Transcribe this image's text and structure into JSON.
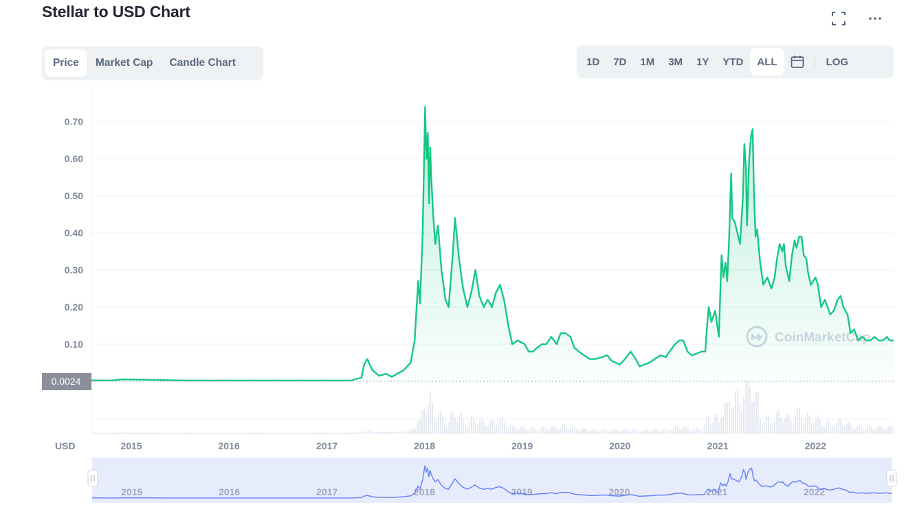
{
  "page": {
    "title": "Stellar to USD Chart",
    "fullscreen_icon": "fullscreen-icon",
    "more_icon": "more-horizontal-icon"
  },
  "tabs": [
    {
      "label": "Price",
      "active": true
    },
    {
      "label": "Market Cap",
      "active": false
    },
    {
      "label": "Candle Chart",
      "active": false
    }
  ],
  "ranges": [
    {
      "label": "1D",
      "active": false
    },
    {
      "label": "7D",
      "active": false
    },
    {
      "label": "1M",
      "active": false
    },
    {
      "label": "3M",
      "active": false
    },
    {
      "label": "1Y",
      "active": false
    },
    {
      "label": "YTD",
      "active": false
    },
    {
      "label": "ALL",
      "active": true
    }
  ],
  "calendar_icon": "calendar-icon",
  "log_label": "LOG",
  "colors": {
    "line": "#16c784",
    "navigator_line": "#6b84f5",
    "navigator_bg": "#e7ecfd",
    "price_tag_bg": "#8b8f99",
    "grid": "#eff2f5"
  },
  "chart_data": {
    "type": "area",
    "title": "Stellar to USD Chart",
    "currency_label": "USD",
    "current_price_label": "0.0024",
    "watermark": "CoinMarketCap",
    "y_ticks": [
      "0.70",
      "0.60",
      "0.50",
      "0.40",
      "0.30",
      "0.20",
      "0.10"
    ],
    "y_tick_values": [
      0.7,
      0.6,
      0.5,
      0.4,
      0.3,
      0.2,
      0.1
    ],
    "ylim": [
      0,
      0.78
    ],
    "xlim": [
      "2014-08-05",
      "2022-10-20"
    ],
    "x_ticks": [
      "2015",
      "2016",
      "2017",
      "2018",
      "2019",
      "2020",
      "2021",
      "2022"
    ],
    "grid": true,
    "series": [
      {
        "values": [
          [
            "2014-08-05",
            0.0024
          ],
          [
            "2014-10-15",
            0.002
          ],
          [
            "2014-12-01",
            0.005
          ],
          [
            "2015-03-01",
            0.004
          ],
          [
            "2015-08-01",
            0.002
          ],
          [
            "2016-03-01",
            0.002
          ],
          [
            "2016-12-01",
            0.002
          ],
          [
            "2017-04-01",
            0.002
          ],
          [
            "2017-05-10",
            0.01
          ],
          [
            "2017-05-20",
            0.045
          ],
          [
            "2017-06-01",
            0.06
          ],
          [
            "2017-06-20",
            0.03
          ],
          [
            "2017-07-15",
            0.015
          ],
          [
            "2017-08-10",
            0.02
          ],
          [
            "2017-09-01",
            0.012
          ],
          [
            "2017-09-20",
            0.02
          ],
          [
            "2017-10-15",
            0.03
          ],
          [
            "2017-11-10",
            0.05
          ],
          [
            "2017-11-25",
            0.11
          ],
          [
            "2017-12-08",
            0.27
          ],
          [
            "2017-12-15",
            0.21
          ],
          [
            "2017-12-25",
            0.4
          ],
          [
            "2018-01-03",
            0.74
          ],
          [
            "2018-01-08",
            0.6
          ],
          [
            "2018-01-13",
            0.67
          ],
          [
            "2018-01-18",
            0.48
          ],
          [
            "2018-01-22",
            0.63
          ],
          [
            "2018-01-26",
            0.55
          ],
          [
            "2018-02-02",
            0.45
          ],
          [
            "2018-02-10",
            0.37
          ],
          [
            "2018-02-20",
            0.42
          ],
          [
            "2018-03-05",
            0.3
          ],
          [
            "2018-03-20",
            0.22
          ],
          [
            "2018-04-01",
            0.2
          ],
          [
            "2018-04-15",
            0.33
          ],
          [
            "2018-04-25",
            0.44
          ],
          [
            "2018-05-10",
            0.33
          ],
          [
            "2018-05-25",
            0.25
          ],
          [
            "2018-06-10",
            0.2
          ],
          [
            "2018-06-25",
            0.24
          ],
          [
            "2018-07-10",
            0.3
          ],
          [
            "2018-07-25",
            0.23
          ],
          [
            "2018-08-10",
            0.2
          ],
          [
            "2018-08-25",
            0.22
          ],
          [
            "2018-09-10",
            0.2
          ],
          [
            "2018-09-25",
            0.24
          ],
          [
            "2018-10-10",
            0.26
          ],
          [
            "2018-10-25",
            0.22
          ],
          [
            "2018-11-10",
            0.15
          ],
          [
            "2018-11-25",
            0.1
          ],
          [
            "2018-12-15",
            0.11
          ],
          [
            "2019-01-10",
            0.1
          ],
          [
            "2019-01-25",
            0.08
          ],
          [
            "2019-02-10",
            0.08
          ],
          [
            "2019-02-25",
            0.09
          ],
          [
            "2019-03-15",
            0.1
          ],
          [
            "2019-04-01",
            0.1
          ],
          [
            "2019-04-20",
            0.12
          ],
          [
            "2019-05-10",
            0.1
          ],
          [
            "2019-05-25",
            0.13
          ],
          [
            "2019-06-10",
            0.13
          ],
          [
            "2019-06-30",
            0.12
          ],
          [
            "2019-07-15",
            0.09
          ],
          [
            "2019-08-01",
            0.08
          ],
          [
            "2019-08-20",
            0.07
          ],
          [
            "2019-09-10",
            0.06
          ],
          [
            "2019-10-01",
            0.06
          ],
          [
            "2019-10-25",
            0.065
          ],
          [
            "2019-11-15",
            0.07
          ],
          [
            "2019-12-01",
            0.055
          ],
          [
            "2020-01-01",
            0.045
          ],
          [
            "2020-01-20",
            0.06
          ],
          [
            "2020-02-10",
            0.08
          ],
          [
            "2020-02-25",
            0.065
          ],
          [
            "2020-03-15",
            0.04
          ],
          [
            "2020-04-01",
            0.045
          ],
          [
            "2020-04-20",
            0.05
          ],
          [
            "2020-05-10",
            0.06
          ],
          [
            "2020-06-01",
            0.07
          ],
          [
            "2020-06-20",
            0.065
          ],
          [
            "2020-07-10",
            0.085
          ],
          [
            "2020-07-25",
            0.1
          ],
          [
            "2020-08-10",
            0.11
          ],
          [
            "2020-08-25",
            0.11
          ],
          [
            "2020-09-10",
            0.08
          ],
          [
            "2020-09-25",
            0.07
          ],
          [
            "2020-10-15",
            0.075
          ],
          [
            "2020-11-01",
            0.08
          ],
          [
            "2020-11-15",
            0.08
          ],
          [
            "2020-11-22",
            0.15
          ],
          [
            "2020-11-28",
            0.2
          ],
          [
            "2020-12-08",
            0.16
          ],
          [
            "2020-12-22",
            0.19
          ],
          [
            "2021-01-05",
            0.12
          ],
          [
            "2021-01-12",
            0.28
          ],
          [
            "2021-01-15",
            0.34
          ],
          [
            "2021-01-22",
            0.28
          ],
          [
            "2021-01-30",
            0.32
          ],
          [
            "2021-02-05",
            0.27
          ],
          [
            "2021-02-12",
            0.38
          ],
          [
            "2021-02-16",
            0.48
          ],
          [
            "2021-02-20",
            0.56
          ],
          [
            "2021-02-24",
            0.44
          ],
          [
            "2021-03-05",
            0.43
          ],
          [
            "2021-03-15",
            0.4
          ],
          [
            "2021-03-25",
            0.37
          ],
          [
            "2021-04-05",
            0.5
          ],
          [
            "2021-04-10",
            0.64
          ],
          [
            "2021-04-16",
            0.58
          ],
          [
            "2021-04-20",
            0.42
          ],
          [
            "2021-04-28",
            0.6
          ],
          [
            "2021-05-05",
            0.66
          ],
          [
            "2021-05-11",
            0.68
          ],
          [
            "2021-05-16",
            0.51
          ],
          [
            "2021-05-22",
            0.39
          ],
          [
            "2021-05-28",
            0.41
          ],
          [
            "2021-06-08",
            0.32
          ],
          [
            "2021-06-20",
            0.26
          ],
          [
            "2021-07-05",
            0.28
          ],
          [
            "2021-07-20",
            0.25
          ],
          [
            "2021-08-01",
            0.28
          ],
          [
            "2021-08-10",
            0.33
          ],
          [
            "2021-08-20",
            0.37
          ],
          [
            "2021-08-30",
            0.35
          ],
          [
            "2021-09-05",
            0.37
          ],
          [
            "2021-09-12",
            0.31
          ],
          [
            "2021-09-25",
            0.27
          ],
          [
            "2021-10-05",
            0.34
          ],
          [
            "2021-10-15",
            0.38
          ],
          [
            "2021-10-22",
            0.36
          ],
          [
            "2021-11-01",
            0.39
          ],
          [
            "2021-11-10",
            0.39
          ],
          [
            "2021-11-18",
            0.34
          ],
          [
            "2021-11-28",
            0.33
          ],
          [
            "2021-12-05",
            0.29
          ],
          [
            "2021-12-15",
            0.26
          ],
          [
            "2022-01-01",
            0.28
          ],
          [
            "2022-01-10",
            0.26
          ],
          [
            "2022-01-22",
            0.2
          ],
          [
            "2022-02-05",
            0.22
          ],
          [
            "2022-02-15",
            0.2
          ],
          [
            "2022-02-25",
            0.18
          ],
          [
            "2022-03-10",
            0.19
          ],
          [
            "2022-03-25",
            0.22
          ],
          [
            "2022-04-05",
            0.23
          ],
          [
            "2022-04-15",
            0.2
          ],
          [
            "2022-05-01",
            0.18
          ],
          [
            "2022-05-12",
            0.13
          ],
          [
            "2022-05-25",
            0.14
          ],
          [
            "2022-06-10",
            0.11
          ],
          [
            "2022-06-25",
            0.12
          ],
          [
            "2022-07-10",
            0.11
          ],
          [
            "2022-07-25",
            0.11
          ],
          [
            "2022-08-10",
            0.12
          ],
          [
            "2022-08-25",
            0.11
          ],
          [
            "2022-09-10",
            0.11
          ],
          [
            "2022-09-25",
            0.12
          ],
          [
            "2022-10-05",
            0.11
          ],
          [
            "2022-10-20",
            0.11
          ]
        ]
      }
    ],
    "navigator": {
      "x_ticks": [
        "2015",
        "2016",
        "2017",
        "2018",
        "2019",
        "2020",
        "2021",
        "2022"
      ],
      "handle_left_icon": "handle-grip-icon",
      "handle_right_icon": "handle-grip-icon"
    }
  }
}
